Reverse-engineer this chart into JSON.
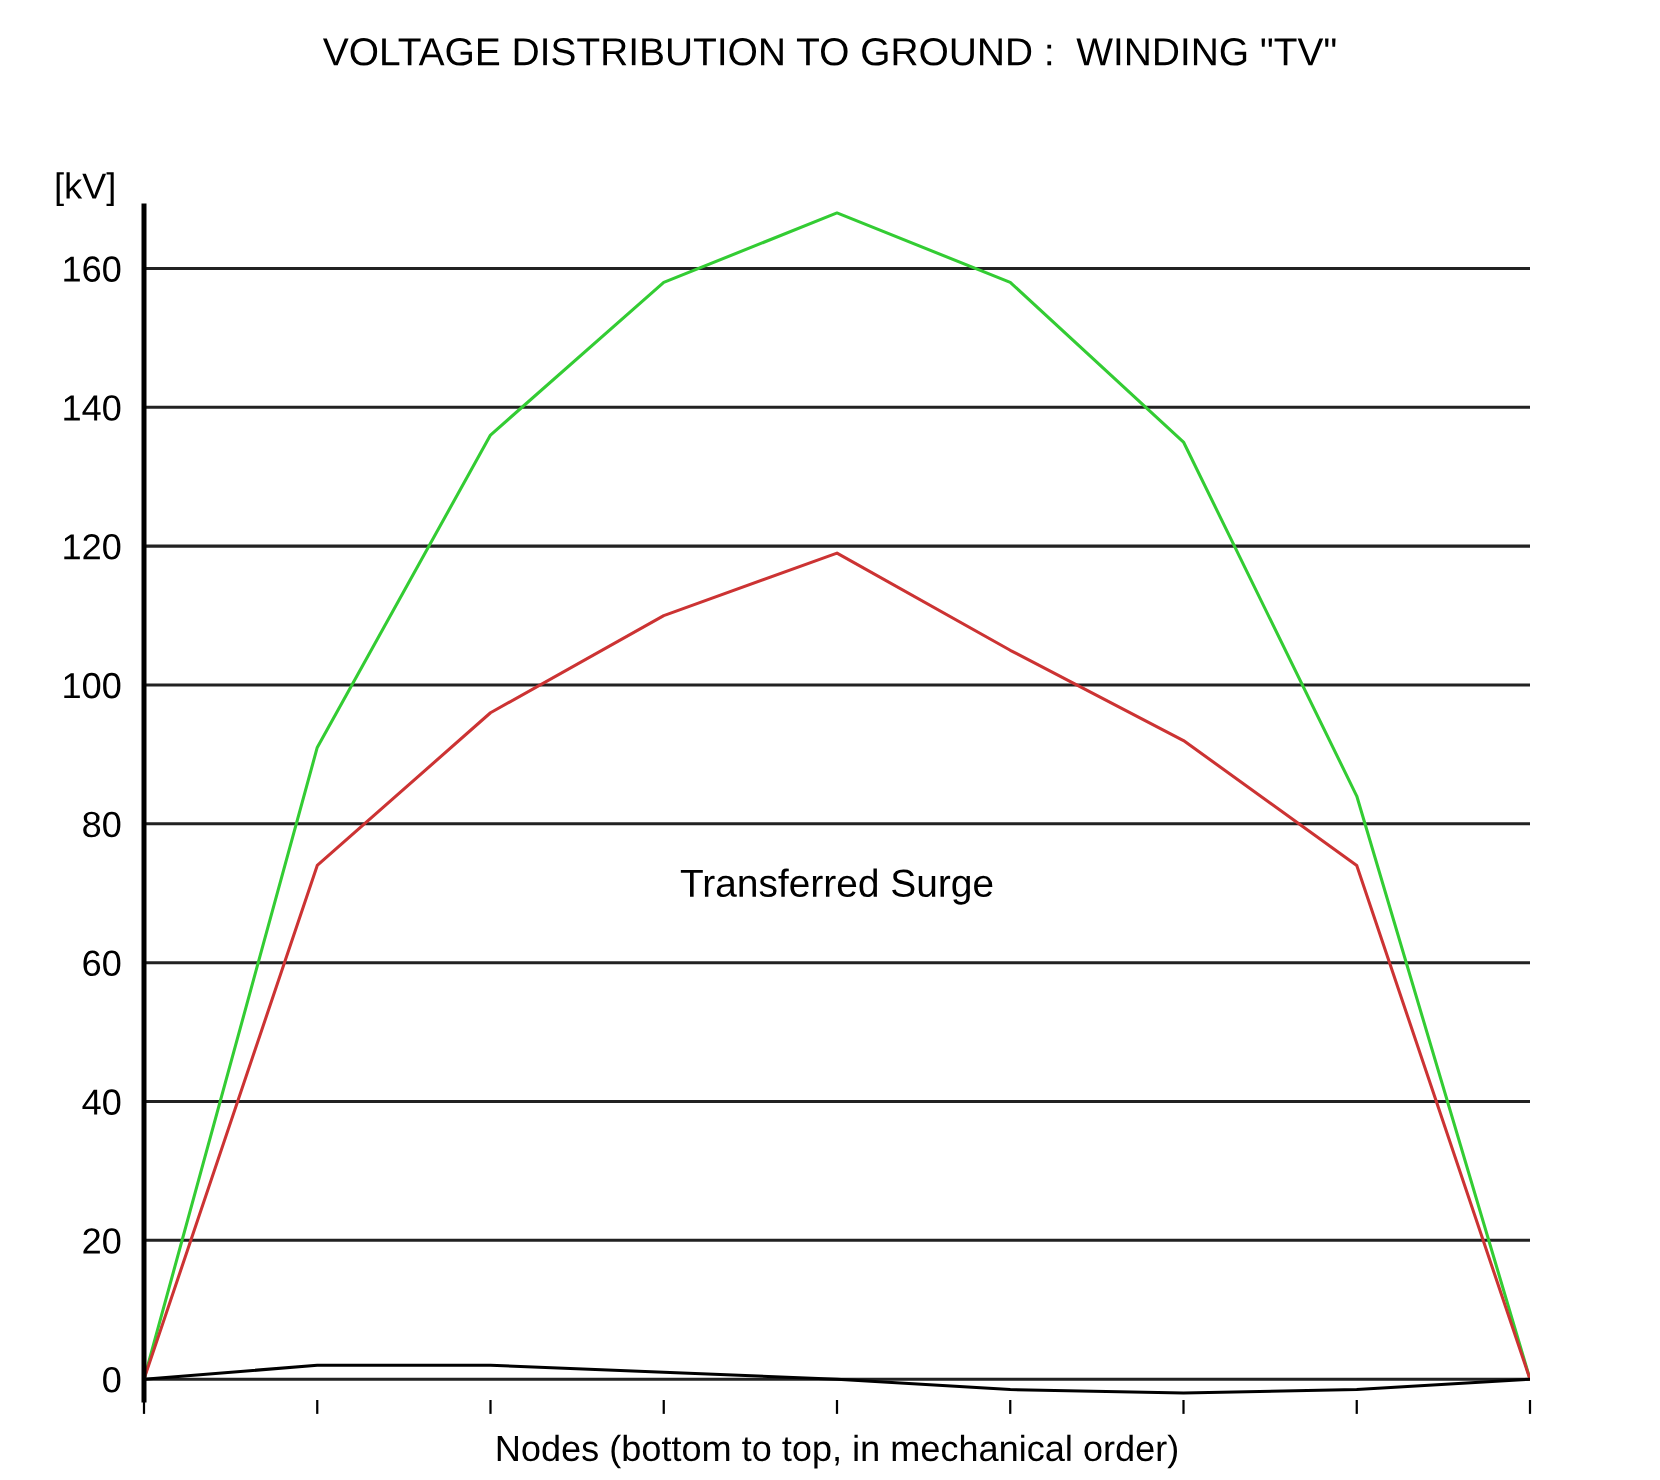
{
  "chart_data": {
    "type": "line",
    "title": "VOLTAGE DISTRIBUTION TO GROUND :  WINDING \"TV\"",
    "xlabel": "Nodes (bottom to top, in mechanical order)",
    "ylabel": "[kV]",
    "categories": [
      null,
      null,
      null,
      null,
      null,
      null,
      null,
      null,
      null
    ],
    "series": [
      {
        "color": "#33cc33",
        "values": [
          0,
          91,
          136,
          158,
          168,
          158,
          135,
          84,
          0
        ]
      },
      {
        "color": "#cc3333",
        "values": [
          0,
          74,
          96,
          110,
          119,
          105,
          92,
          74,
          0
        ]
      },
      {
        "color": "#000000",
        "values": [
          0,
          2,
          2,
          1,
          0,
          -1.5,
          -2,
          -1.5,
          0
        ]
      }
    ],
    "ylim": [
      -3,
      169
    ],
    "yticks": [
      0,
      20,
      40,
      60,
      80,
      100,
      120,
      140,
      160
    ],
    "grid": "y",
    "marker": "none",
    "line_style": "solid",
    "annotations": [
      "Transferred Surge"
    ]
  }
}
